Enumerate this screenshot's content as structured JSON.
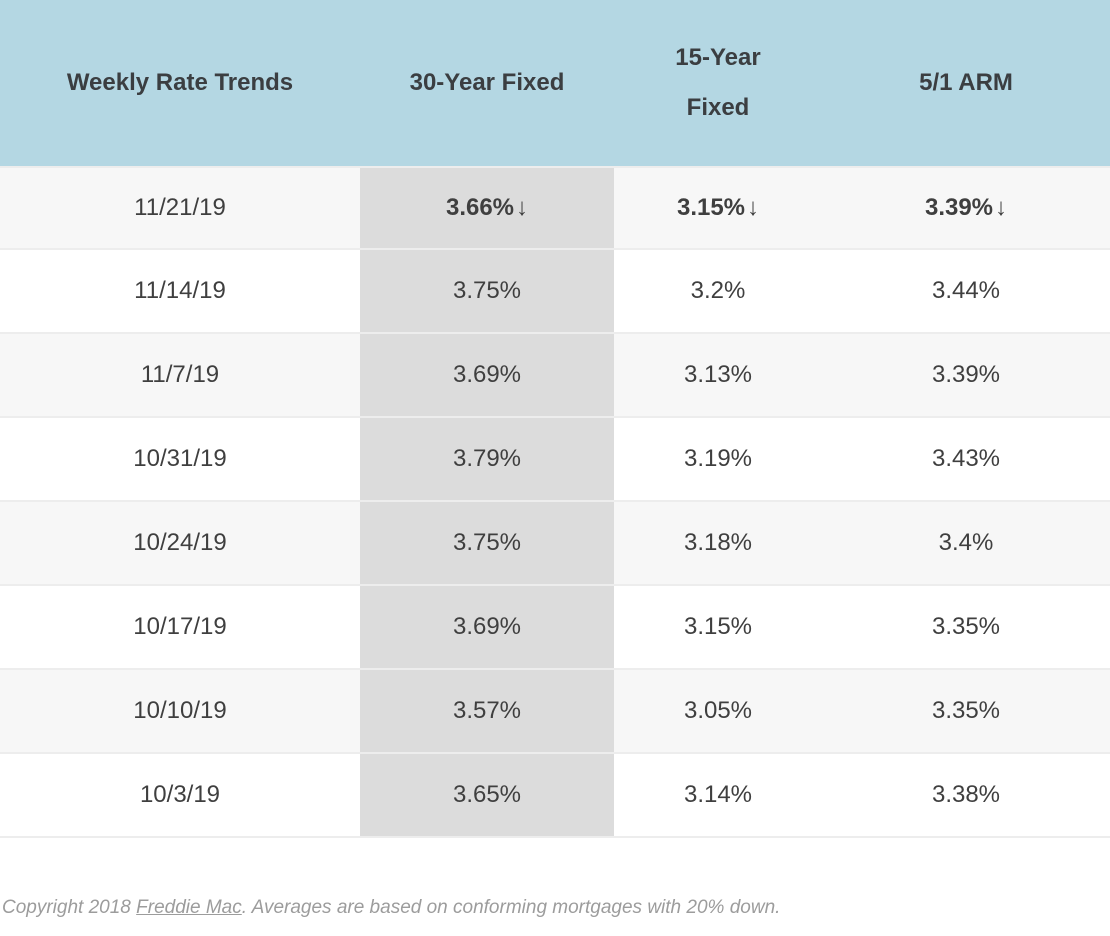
{
  "colors": {
    "header_bg": "#b4d7e3",
    "highlight_column_bg": "#dcdcdc",
    "row_alt_bg": "#f7f7f7",
    "row_bg": "#ffffff",
    "row_border": "#ededed",
    "text": "#3f3f3f",
    "footer_text": "#9c9c9c"
  },
  "table": {
    "headers": {
      "col1": "Weekly Rate Trends",
      "col2": "30-Year Fixed",
      "col3": "15-Year\nFixed",
      "col4": "5/1 ARM"
    },
    "rows": [
      {
        "date": "11/21/19",
        "rate_30yr": "3.66%",
        "rate_15yr": "3.15%",
        "rate_arm": "3.39%",
        "trend_arrow": "↓"
      },
      {
        "date": "11/14/19",
        "rate_30yr": "3.75%",
        "rate_15yr": "3.2%",
        "rate_arm": "3.44%"
      },
      {
        "date": "11/7/19",
        "rate_30yr": "3.69%",
        "rate_15yr": "3.13%",
        "rate_arm": "3.39%"
      },
      {
        "date": "10/31/19",
        "rate_30yr": "3.79%",
        "rate_15yr": "3.19%",
        "rate_arm": "3.43%"
      },
      {
        "date": "10/24/19",
        "rate_30yr": "3.75%",
        "rate_15yr": "3.18%",
        "rate_arm": "3.4%"
      },
      {
        "date": "10/17/19",
        "rate_30yr": "3.69%",
        "rate_15yr": "3.15%",
        "rate_arm": "3.35%"
      },
      {
        "date": "10/10/19",
        "rate_30yr": "3.57%",
        "rate_15yr": "3.05%",
        "rate_arm": "3.35%"
      },
      {
        "date": "10/3/19",
        "rate_30yr": "3.65%",
        "rate_15yr": "3.14%",
        "rate_arm": "3.38%"
      }
    ]
  },
  "footer": {
    "prefix": "Copyright 2018 ",
    "link_label": "Freddie Mac",
    "suffix": ". Averages are based on conforming mortgages with 20% down."
  },
  "chart_data": {
    "type": "table",
    "title": "Weekly Rate Trends",
    "columns": [
      "Weekly Rate Trends",
      "30-Year Fixed",
      "15-Year Fixed",
      "5/1 ARM"
    ],
    "rows": [
      [
        "11/21/19",
        "3.66%↓",
        "3.15%↓",
        "3.39%↓"
      ],
      [
        "11/14/19",
        "3.75%",
        "3.2%",
        "3.44%"
      ],
      [
        "11/7/19",
        "3.69%",
        "3.13%",
        "3.39%"
      ],
      [
        "10/31/19",
        "3.79%",
        "3.19%",
        "3.43%"
      ],
      [
        "10/24/19",
        "3.75%",
        "3.18%",
        "3.4%"
      ],
      [
        "10/17/19",
        "3.69%",
        "3.15%",
        "3.35%"
      ],
      [
        "10/10/19",
        "3.57%",
        "3.05%",
        "3.35%"
      ],
      [
        "10/3/19",
        "3.65%",
        "3.14%",
        "3.38%"
      ]
    ],
    "series": [
      {
        "name": "30-Year Fixed",
        "x": [
          "11/21/19",
          "11/14/19",
          "11/7/19",
          "10/31/19",
          "10/24/19",
          "10/17/19",
          "10/10/19",
          "10/3/19"
        ],
        "values": [
          3.66,
          3.75,
          3.69,
          3.79,
          3.75,
          3.69,
          3.57,
          3.65
        ]
      },
      {
        "name": "15-Year Fixed",
        "x": [
          "11/21/19",
          "11/14/19",
          "11/7/19",
          "10/31/19",
          "10/24/19",
          "10/17/19",
          "10/10/19",
          "10/3/19"
        ],
        "values": [
          3.15,
          3.2,
          3.13,
          3.19,
          3.18,
          3.15,
          3.05,
          3.14
        ]
      },
      {
        "name": "5/1 ARM",
        "x": [
          "11/21/19",
          "11/14/19",
          "11/7/19",
          "10/31/19",
          "10/24/19",
          "10/17/19",
          "10/10/19",
          "10/3/19"
        ],
        "values": [
          3.39,
          3.44,
          3.39,
          3.43,
          3.4,
          3.35,
          3.35,
          3.38
        ]
      }
    ],
    "notes": "Values in latest week (11/21/19) are bold with down arrows indicating a decrease from prior week. Units: percent."
  }
}
